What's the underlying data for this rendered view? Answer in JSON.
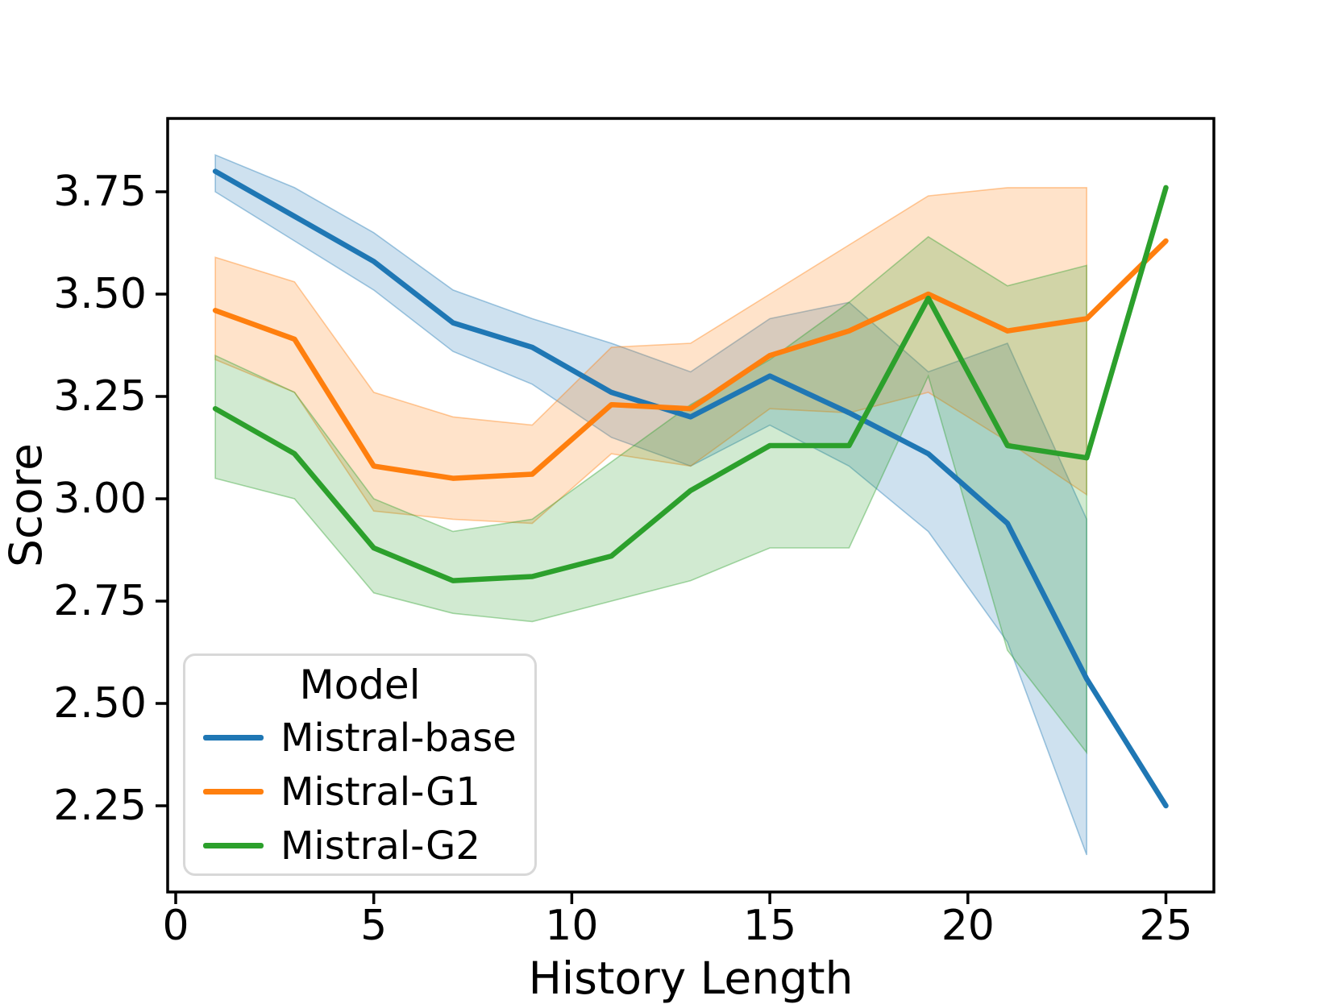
{
  "chart_data": {
    "type": "line",
    "title": "",
    "xlabel": "History Length",
    "ylabel": "Score",
    "x": [
      1,
      3,
      5,
      7,
      9,
      11,
      13,
      15,
      17,
      19,
      21,
      23,
      25
    ],
    "xlim": [
      -0.2,
      26.2
    ],
    "ylim": [
      2.04,
      3.93
    ],
    "xticks": [
      0,
      5,
      10,
      15,
      20,
      25
    ],
    "xticklabels": [
      "0",
      "5",
      "10",
      "15",
      "20",
      "25"
    ],
    "yticks": [
      2.25,
      2.5,
      2.75,
      3.0,
      3.25,
      3.5,
      3.75
    ],
    "yticklabels": [
      "2.25",
      "2.50",
      "2.75",
      "3.00",
      "3.25",
      "3.50",
      "3.75"
    ],
    "grid": false,
    "legend": {
      "title": "Model",
      "position": "lower-left"
    },
    "band_note": "shaded confidence bands cover x=1..23 only; no band at x=25",
    "series": [
      {
        "name": "Mistral-base",
        "color": "#1f77b4",
        "values": [
          3.8,
          3.69,
          3.58,
          3.43,
          3.37,
          3.26,
          3.2,
          3.3,
          3.21,
          3.11,
          2.94,
          2.56,
          2.25
        ],
        "band_low": [
          3.75,
          3.63,
          3.51,
          3.36,
          3.28,
          3.15,
          3.08,
          3.18,
          3.08,
          2.92,
          2.65,
          2.13,
          null
        ],
        "band_high": [
          3.84,
          3.76,
          3.65,
          3.51,
          3.44,
          3.38,
          3.31,
          3.44,
          3.48,
          3.31,
          3.38,
          2.95,
          null
        ]
      },
      {
        "name": "Mistral-G1",
        "color": "#ff7f0e",
        "values": [
          3.46,
          3.39,
          3.08,
          3.05,
          3.06,
          3.23,
          3.22,
          3.35,
          3.41,
          3.5,
          3.41,
          3.44,
          3.63
        ],
        "band_low": [
          3.34,
          3.26,
          2.97,
          2.95,
          2.94,
          3.11,
          3.08,
          3.22,
          3.21,
          3.26,
          3.14,
          3.01,
          null
        ],
        "band_high": [
          3.59,
          3.53,
          3.26,
          3.2,
          3.18,
          3.37,
          3.38,
          3.5,
          3.62,
          3.74,
          3.76,
          3.76,
          null
        ]
      },
      {
        "name": "Mistral-G2",
        "color": "#2ca02c",
        "values": [
          3.22,
          3.11,
          2.88,
          2.8,
          2.81,
          2.86,
          3.02,
          3.13,
          3.13,
          3.49,
          3.13,
          3.1,
          3.76
        ],
        "band_low": [
          3.05,
          3.0,
          2.77,
          2.72,
          2.7,
          2.75,
          2.8,
          2.88,
          2.88,
          3.3,
          2.63,
          2.38,
          null
        ],
        "band_high": [
          3.35,
          3.26,
          3.0,
          2.92,
          2.95,
          3.09,
          3.23,
          3.34,
          3.48,
          3.64,
          3.52,
          3.57,
          null
        ]
      }
    ]
  }
}
